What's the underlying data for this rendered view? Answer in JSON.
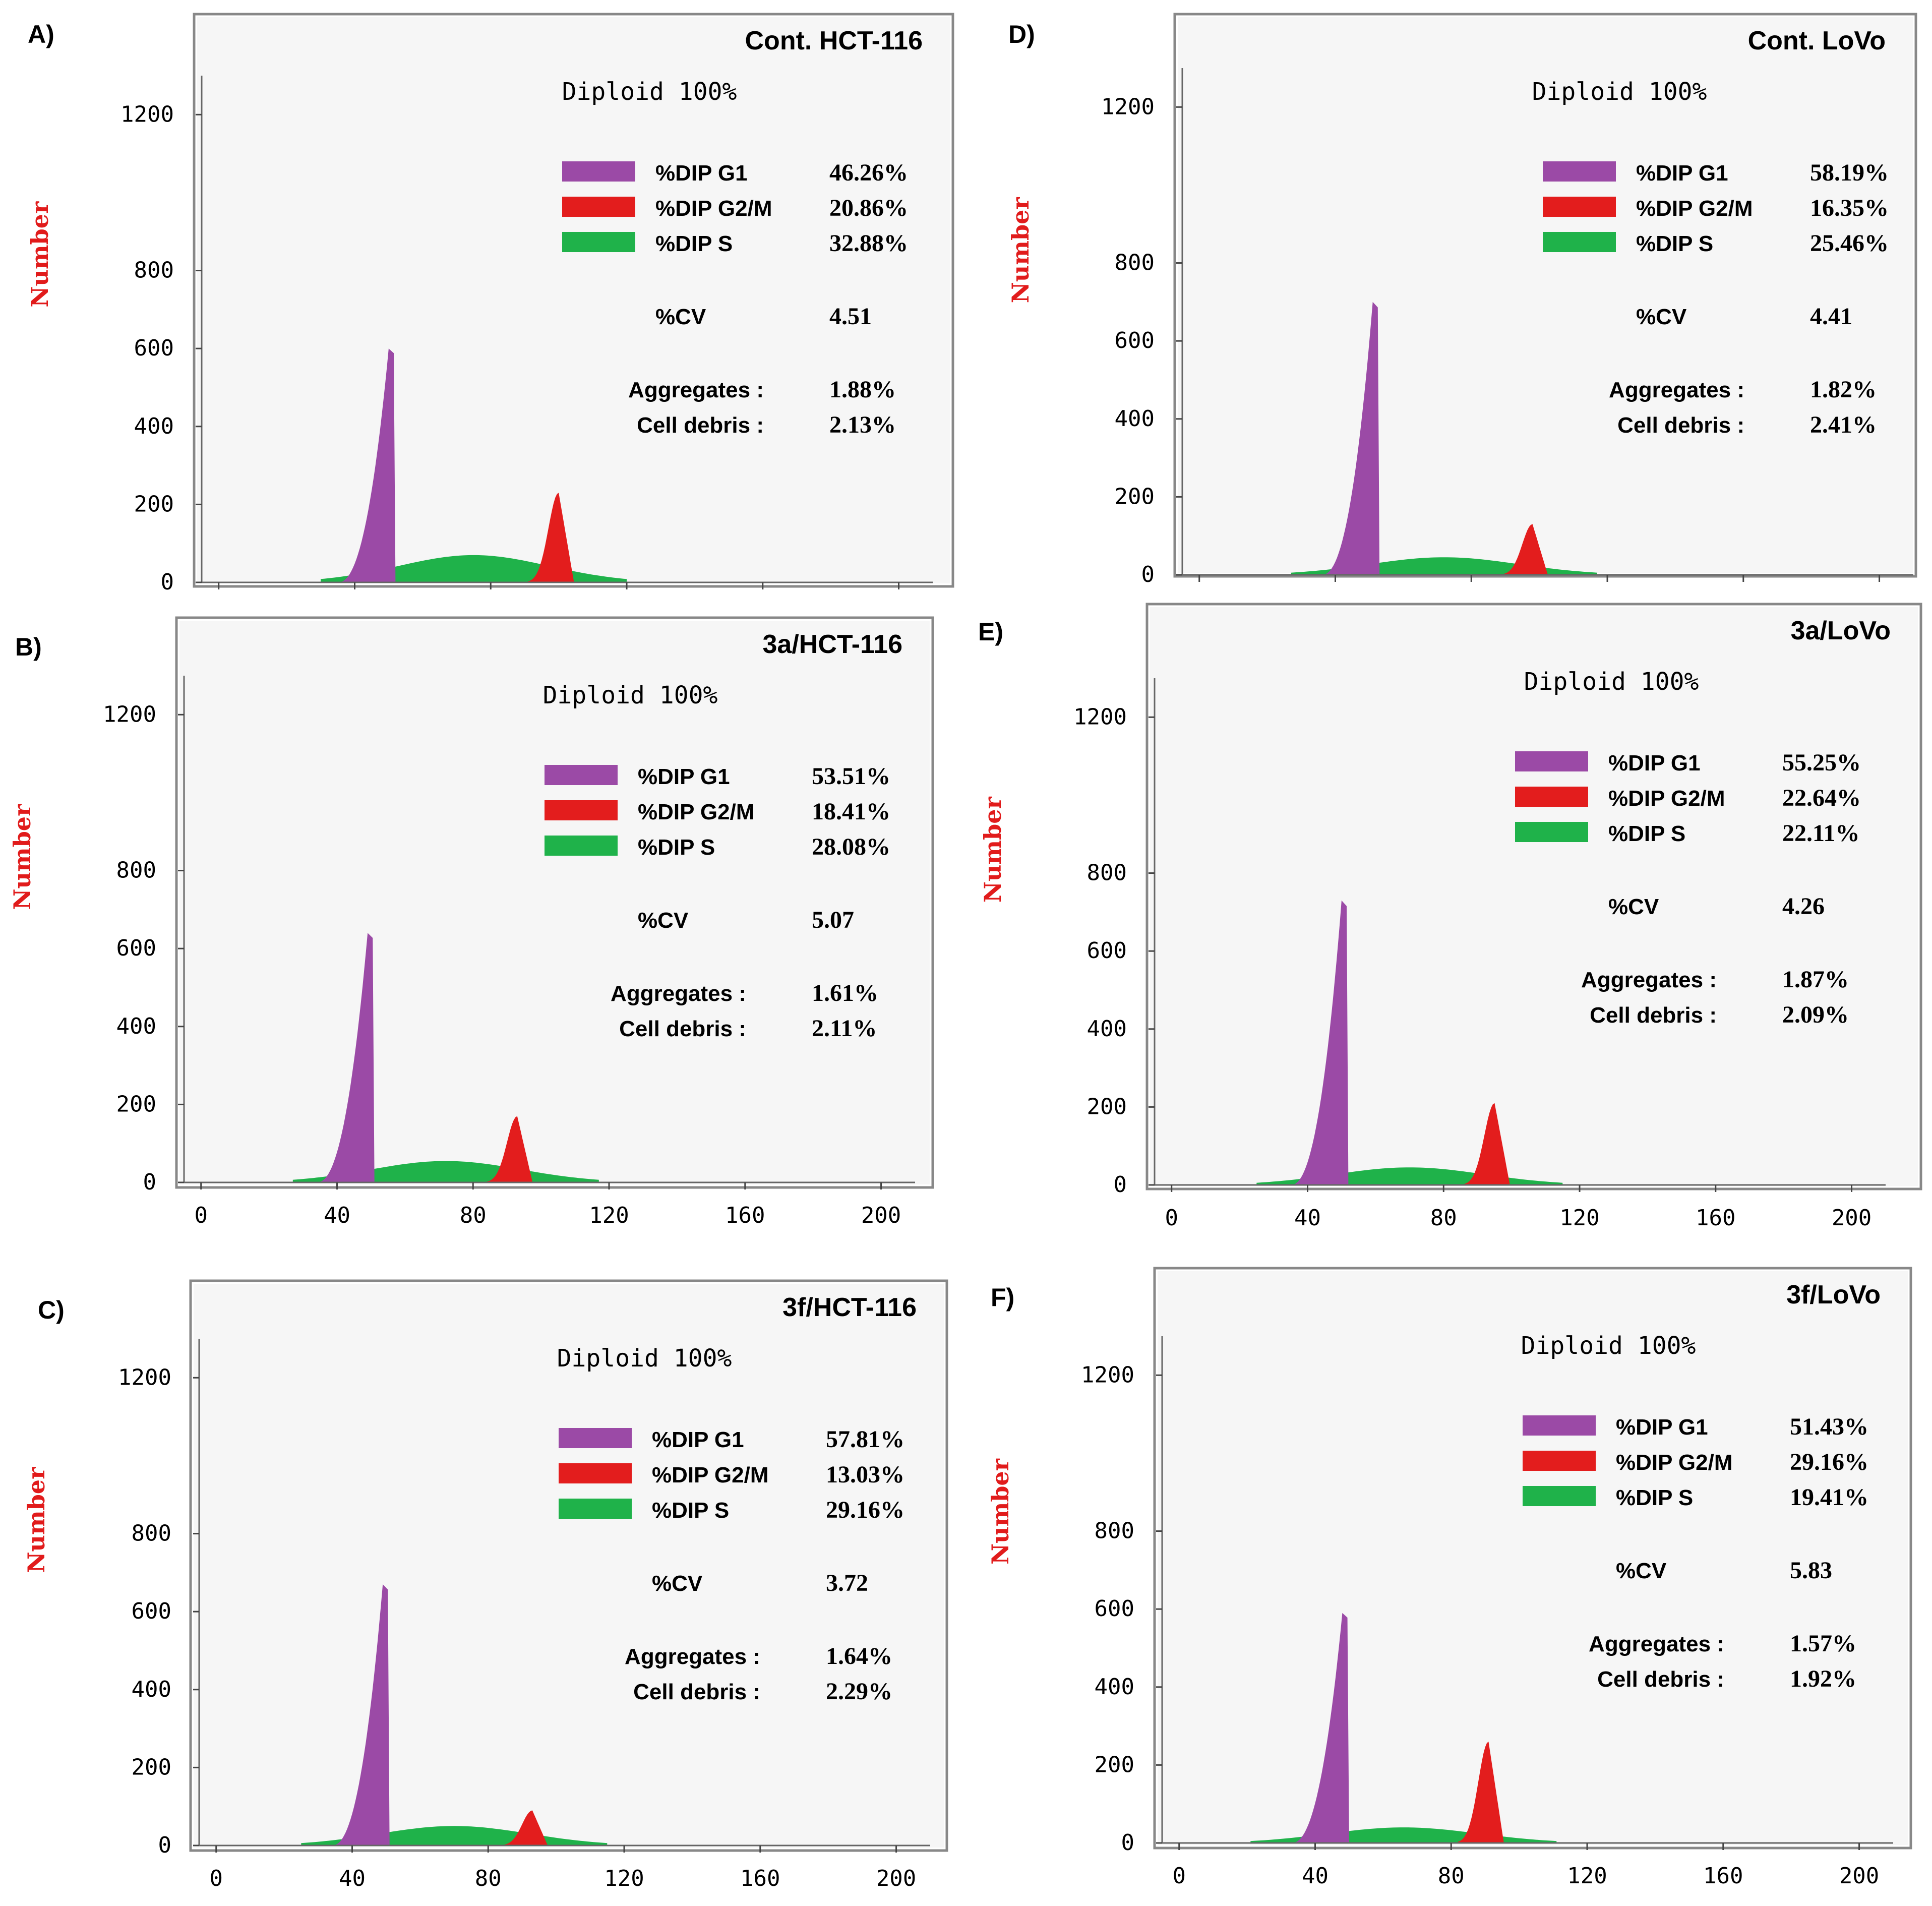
{
  "figure": {
    "colors": {
      "g1": "#9b4aa6",
      "g2m": "#e31d1d",
      "s": "#1fb24a",
      "ylabel": "#e11b1b",
      "frame": "#888888",
      "inner": "#f6f6f6"
    }
  },
  "chart_data": [
    {
      "panel": "A)",
      "title": "Cont. HCT-116",
      "type": "histogram",
      "subtitle": "Diploid 100%",
      "ylabel": "Number",
      "xlabel": "",
      "yticks": [
        "0",
        "200",
        "400",
        "600",
        "800",
        "1200"
      ],
      "xticks": [],
      "ylim": [
        0,
        1300
      ],
      "xlim": [
        -5,
        210
      ],
      "legend": [
        {
          "name": "%DIP G1",
          "value": "46.26%"
        },
        {
          "name": "%DIP G2/M",
          "value": "20.86%"
        },
        {
          "name": "%DIP S",
          "value": "32.88%"
        }
      ],
      "cv": {
        "label": "%CV",
        "value": "4.51"
      },
      "aggregates": {
        "label": "Aggregates :",
        "value": "1.88%"
      },
      "debris": {
        "label": "Cell debris :",
        "value": "2.13%"
      },
      "peaks": {
        "g1": {
          "x": 50,
          "y": 600
        },
        "g2m": {
          "x": 100,
          "y": 230
        },
        "s": {
          "center": 75,
          "height": 70
        }
      }
    },
    {
      "panel": "B)",
      "title": "3a/HCT-116",
      "type": "histogram",
      "subtitle": "Diploid 100%",
      "ylabel": "Number",
      "xlabel": "",
      "yticks": [
        "0",
        "200",
        "400",
        "600",
        "800",
        "1200"
      ],
      "xticks": [
        "0",
        "40",
        "80",
        "120",
        "160",
        "200"
      ],
      "ylim": [
        0,
        1300
      ],
      "xlim": [
        -5,
        210
      ],
      "legend": [
        {
          "name": "%DIP G1",
          "value": "53.51%"
        },
        {
          "name": "%DIP G2/M",
          "value": "18.41%"
        },
        {
          "name": "%DIP S",
          "value": "28.08%"
        }
      ],
      "cv": {
        "label": "%CV",
        "value": "5.07"
      },
      "aggregates": {
        "label": "Aggregates :",
        "value": "1.61%"
      },
      "debris": {
        "label": "Cell debris :",
        "value": "2.11%"
      },
      "peaks": {
        "g1": {
          "x": 49,
          "y": 640
        },
        "g2m": {
          "x": 93,
          "y": 170
        },
        "s": {
          "center": 72,
          "height": 55
        }
      }
    },
    {
      "panel": "C)",
      "title": "3f/HCT-116",
      "type": "histogram",
      "subtitle": "Diploid 100%",
      "ylabel": "Number",
      "xlabel": "",
      "yticks": [
        "0",
        "200",
        "400",
        "600",
        "800",
        "1200"
      ],
      "xticks": [
        "0",
        "40",
        "80",
        "120",
        "160",
        "200"
      ],
      "ylim": [
        0,
        1300
      ],
      "xlim": [
        -5,
        210
      ],
      "legend": [
        {
          "name": "%DIP G1",
          "value": "57.81%"
        },
        {
          "name": "%DIP G2/M",
          "value": "13.03%"
        },
        {
          "name": "%DIP S",
          "value": "29.16%"
        }
      ],
      "cv": {
        "label": "%CV",
        "value": "3.72"
      },
      "aggregates": {
        "label": "Aggregates :",
        "value": "1.64%"
      },
      "debris": {
        "label": "Cell debris :",
        "value": "2.29%"
      },
      "peaks": {
        "g1": {
          "x": 49,
          "y": 670
        },
        "g2m": {
          "x": 93,
          "y": 90
        },
        "s": {
          "center": 70,
          "height": 50
        }
      }
    },
    {
      "panel": "D)",
      "title": "Cont. LoVo",
      "type": "histogram",
      "subtitle": "Diploid 100%",
      "ylabel": "Number",
      "xlabel": "",
      "yticks": [
        "0",
        "200",
        "400",
        "600",
        "800",
        "1200"
      ],
      "xticks": [],
      "ylim": [
        0,
        1300
      ],
      "xlim": [
        -5,
        210
      ],
      "legend": [
        {
          "name": "%DIP G1",
          "value": "58.19%"
        },
        {
          "name": "%DIP G2/M",
          "value": "16.35%"
        },
        {
          "name": "%DIP S",
          "value": "25.46%"
        }
      ],
      "cv": {
        "label": "%CV",
        "value": "4.41"
      },
      "aggregates": {
        "label": "Aggregates :",
        "value": "1.82%"
      },
      "debris": {
        "label": "Cell debris :",
        "value": "2.41%"
      },
      "peaks": {
        "g1": {
          "x": 51,
          "y": 700
        },
        "g2m": {
          "x": 98,
          "y": 130
        },
        "s": {
          "center": 72,
          "height": 45
        }
      }
    },
    {
      "panel": "E)",
      "title": "3a/LoVo",
      "type": "histogram",
      "subtitle": "Diploid 100%",
      "ylabel": "Number",
      "xlabel": "",
      "yticks": [
        "0",
        "200",
        "400",
        "600",
        "800",
        "1200"
      ],
      "xticks": [
        "0",
        "40",
        "80",
        "120",
        "160",
        "200"
      ],
      "ylim": [
        0,
        1300
      ],
      "xlim": [
        -5,
        210
      ],
      "legend": [
        {
          "name": "%DIP G1",
          "value": "55.25%"
        },
        {
          "name": "%DIP G2/M",
          "value": "22.64%"
        },
        {
          "name": "%DIP S",
          "value": "22.11%"
        }
      ],
      "cv": {
        "label": "%CV",
        "value": "4.26"
      },
      "aggregates": {
        "label": "Aggregates :",
        "value": "1.87%"
      },
      "debris": {
        "label": "Cell debris :",
        "value": "2.09%"
      },
      "peaks": {
        "g1": {
          "x": 50,
          "y": 730
        },
        "g2m": {
          "x": 95,
          "y": 210
        },
        "s": {
          "center": 70,
          "height": 45
        }
      }
    },
    {
      "panel": "F)",
      "title": "3f/LoVo",
      "type": "histogram",
      "subtitle": "Diploid 100%",
      "ylabel": "Number",
      "xlabel": "",
      "yticks": [
        "0",
        "200",
        "400",
        "600",
        "800",
        "1200"
      ],
      "xticks": [
        "0",
        "40",
        "80",
        "120",
        "160",
        "200"
      ],
      "ylim": [
        0,
        1300
      ],
      "xlim": [
        -5,
        210
      ],
      "legend": [
        {
          "name": "%DIP G1",
          "value": "51.43%"
        },
        {
          "name": "%DIP G2/M",
          "value": "29.16%"
        },
        {
          "name": "%DIP S",
          "value": "19.41%"
        }
      ],
      "cv": {
        "label": "%CV",
        "value": "5.83"
      },
      "aggregates": {
        "label": "Aggregates :",
        "value": "1.57%"
      },
      "debris": {
        "label": "Cell debris :",
        "value": "1.92%"
      },
      "peaks": {
        "g1": {
          "x": 48,
          "y": 590
        },
        "g2m": {
          "x": 91,
          "y": 260
        },
        "s": {
          "center": 66,
          "height": 40
        }
      }
    }
  ]
}
